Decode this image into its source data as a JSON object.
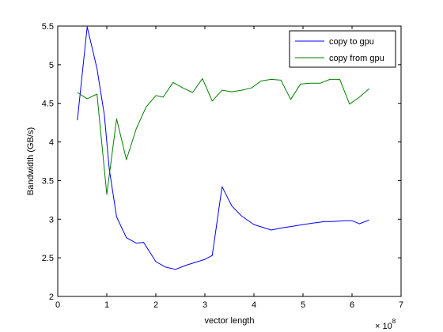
{
  "chart_data": {
    "type": "line",
    "xlabel": "vector length",
    "ylabel": "Bandwidth (GB/s)",
    "x_exponent": {
      "base": "× 10",
      "power": "8"
    },
    "xlim": [
      0,
      7
    ],
    "ylim": [
      2,
      5.5
    ],
    "xticks": [
      0,
      1,
      2,
      3,
      4,
      5,
      6,
      7
    ],
    "yticks": [
      2,
      2.5,
      3,
      3.5,
      4,
      4.5,
      5,
      5.5
    ],
    "xtick_labels": [
      "0",
      "1",
      "2",
      "3",
      "4",
      "5",
      "6",
      "7"
    ],
    "ytick_labels": [
      "2",
      "2.5",
      "3",
      "3.5",
      "4",
      "4.5",
      "5",
      "5.5"
    ],
    "grid": false,
    "legend_position": "top-right",
    "series": [
      {
        "name": "copy to gpu",
        "color": "#0000ff",
        "x": [
          0.4,
          0.6,
          0.8,
          0.95,
          1.05,
          1.2,
          1.4,
          1.6,
          1.75,
          2.0,
          2.2,
          2.4,
          2.6,
          2.8,
          3.0,
          3.15,
          3.35,
          3.55,
          3.75,
          4.0,
          4.2,
          4.35,
          4.6,
          4.8,
          5.0,
          5.2,
          5.45,
          5.6,
          5.85,
          6.0,
          6.15,
          6.35
        ],
        "values": [
          4.28,
          5.49,
          4.95,
          4.35,
          3.65,
          3.03,
          2.76,
          2.69,
          2.7,
          2.45,
          2.38,
          2.35,
          2.4,
          2.44,
          2.48,
          2.53,
          3.42,
          3.17,
          3.04,
          2.93,
          2.89,
          2.86,
          2.89,
          2.91,
          2.93,
          2.95,
          2.97,
          2.97,
          2.98,
          2.98,
          2.94,
          2.99
        ]
      },
      {
        "name": "copy from gpu",
        "color": "#008000",
        "x": [
          0.4,
          0.6,
          0.8,
          1.0,
          1.2,
          1.4,
          1.6,
          1.8,
          2.0,
          2.15,
          2.35,
          2.55,
          2.75,
          2.95,
          3.15,
          3.35,
          3.55,
          3.75,
          3.95,
          4.15,
          4.35,
          4.55,
          4.75,
          4.95,
          5.15,
          5.35,
          5.55,
          5.75,
          5.95,
          6.15,
          6.35
        ],
        "values": [
          4.64,
          4.56,
          4.62,
          3.32,
          4.3,
          3.77,
          4.17,
          4.45,
          4.6,
          4.58,
          4.77,
          4.7,
          4.64,
          4.82,
          4.53,
          4.67,
          4.65,
          4.67,
          4.7,
          4.79,
          4.81,
          4.8,
          4.55,
          4.75,
          4.76,
          4.76,
          4.81,
          4.81,
          4.49,
          4.58,
          4.69
        ]
      }
    ]
  }
}
